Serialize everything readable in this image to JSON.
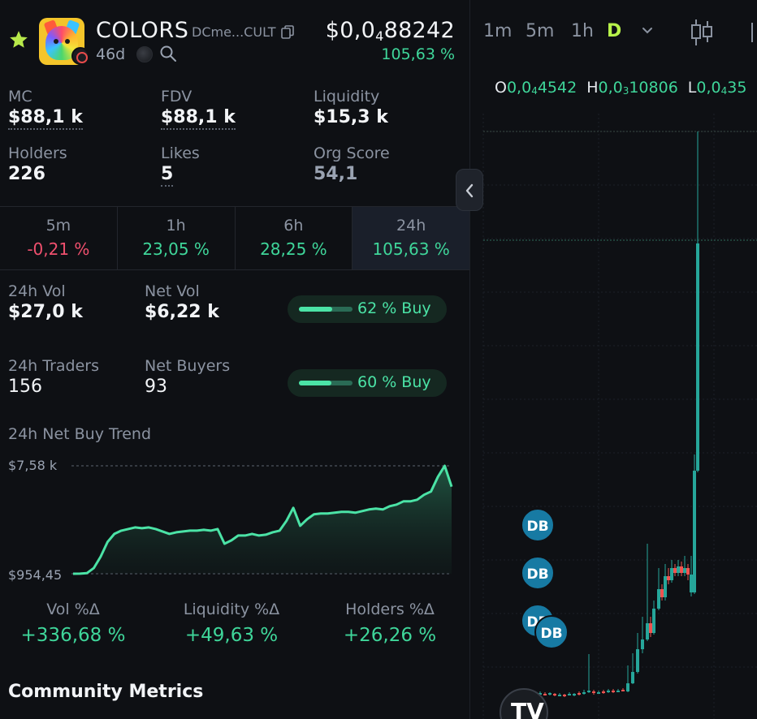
{
  "token": {
    "name": "COLORS",
    "address": "DCme...CULT",
    "age": "46d",
    "price_prefix": "$0,0",
    "price_zeros": "4",
    "price_digits": "88242",
    "price_change": "105,63 %"
  },
  "stats": [
    {
      "label": "MC",
      "value": "$88,1 k"
    },
    {
      "label": "FDV",
      "value": "$88,1 k"
    },
    {
      "label": "Liquidity",
      "value": "$15,3 k"
    },
    {
      "label": "Holders",
      "value": "226"
    },
    {
      "label": "Likes",
      "value": "5"
    },
    {
      "label": "Org Score",
      "value": "54,1"
    }
  ],
  "timeframes": [
    {
      "label": "5m",
      "change": "-0,21 %",
      "direction": "down"
    },
    {
      "label": "1h",
      "change": "23,05 %",
      "direction": "up"
    },
    {
      "label": "6h",
      "change": "28,25 %",
      "direction": "up"
    },
    {
      "label": "24h",
      "change": "105,63 %",
      "direction": "up",
      "selected": true
    }
  ],
  "volume": {
    "vol_label": "24h Vol",
    "vol_value": "$27,0 k",
    "net_vol_label": "Net Vol",
    "net_vol_value": "$6,22 k",
    "buy_pct_text": "62 % Buy",
    "buy_pct": 0.62,
    "traders_label": "24h Traders",
    "traders_value": "156",
    "net_buyers_label": "Net Buyers",
    "net_buyers_value": "93",
    "buyers_pct_text": "60 % Buy",
    "buyers_pct": 0.6
  },
  "trend": {
    "title": "24h Net Buy Trend",
    "max_label": "$7,58 k",
    "min_label": "$954,45"
  },
  "chart_data": {
    "type": "area",
    "ylim": [
      954.45,
      7580
    ],
    "values": [
      954,
      960,
      990,
      1300,
      2000,
      2900,
      3400,
      3600,
      3700,
      3800,
      3750,
      3800,
      3700,
      3550,
      3400,
      3500,
      3550,
      3600,
      3600,
      3650,
      3600,
      3700,
      2800,
      3000,
      3300,
      3300,
      3400,
      3300,
      3350,
      3500,
      3600,
      4200,
      5000,
      3900,
      4300,
      4600,
      4650,
      4650,
      4700,
      4750,
      4750,
      4700,
      4800,
      4900,
      4950,
      4900,
      5100,
      5200,
      5400,
      5400,
      5500,
      5800,
      6000,
      6900,
      7580,
      6300
    ]
  },
  "deltas": [
    {
      "label": "Vol %Δ",
      "value": "+336,68 %"
    },
    {
      "label": "Liquidity %Δ",
      "value": "+49,63 %"
    },
    {
      "label": "Holders %Δ",
      "value": "+26,26 %"
    }
  ],
  "community_title": "Community Metrics",
  "price_chart": {
    "intervals": [
      "1m",
      "5m",
      "1h",
      "D"
    ],
    "active_interval": "D",
    "ohlc": [
      {
        "key": "O",
        "prefix": "0,0",
        "zeros": "4",
        "digits": "4542"
      },
      {
        "key": "H",
        "prefix": "0,0",
        "zeros": "3",
        "digits": "10806"
      },
      {
        "key": "L",
        "prefix": "0,0",
        "zeros": "4",
        "digits": "35"
      }
    ],
    "markers": [
      "DB",
      "DB",
      "DB",
      "DB"
    ],
    "colors": {
      "up": "#26a69a",
      "down": "#ef5350",
      "accent": "#3fd69a",
      "marker": "#177aa3"
    }
  }
}
